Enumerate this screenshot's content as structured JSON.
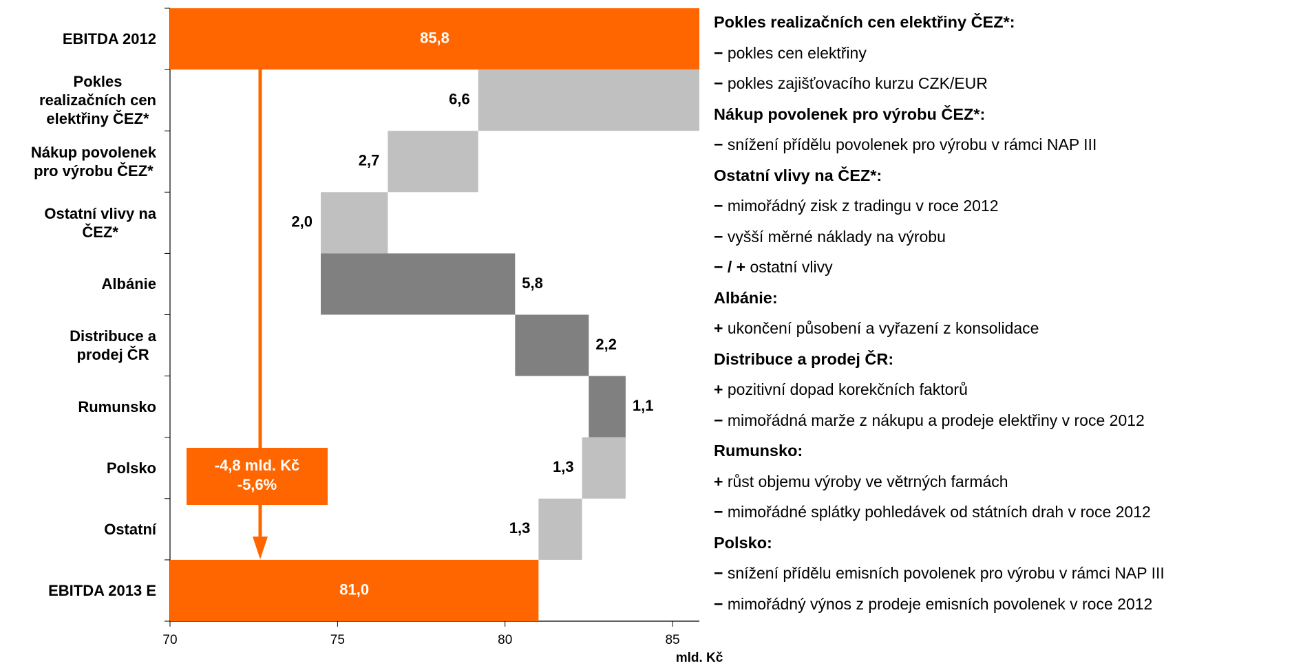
{
  "chart_data": {
    "type": "waterfall",
    "categories": [
      "EBITDA 2012",
      "Pokles\nrealizačních cen\nelektřiny ČEZ*",
      "Nákup povolenek\npro výrobu ČEZ*",
      "Ostatní vlivy na\nČEZ*",
      "Albánie",
      "Distribuce a\nprodej ČR",
      "Rumunsko",
      "Polsko",
      "Ostatní",
      "EBITDA 2013 E"
    ],
    "values": [
      85.8,
      -6.6,
      -2.7,
      -2.0,
      5.8,
      2.2,
      1.1,
      -1.3,
      -1.3,
      81.0
    ],
    "value_labels": [
      "85,8",
      "6,6",
      "2,7",
      "2,0",
      "5,8",
      "2,2",
      "1,1",
      "1,3",
      "1,3",
      "81,0"
    ],
    "colors": [
      "#ff6600",
      "#c0c0c0",
      "#c0c0c0",
      "#c0c0c0",
      "#808080",
      "#808080",
      "#808080",
      "#c0c0c0",
      "#c0c0c0",
      "#ff6600"
    ],
    "xlim": [
      70,
      85.8
    ],
    "xticks": [
      70,
      75,
      80,
      85
    ],
    "xlabel": "mld. Kč",
    "annotation": {
      "lines": [
        "-4,8 mld. Kč",
        "-5,6%"
      ],
      "color": "#ff6600"
    }
  },
  "notes": [
    {
      "heading": "Pokles realizačních cen elektřiny ČEZ*:",
      "items": [
        {
          "sign": "−",
          "text": "pokles cen elektřiny"
        },
        {
          "sign": "−",
          "text": "pokles zajišťovacího kurzu CZK/EUR"
        }
      ]
    },
    {
      "heading": "Nákup povolenek pro výrobu ČEZ*:",
      "items": [
        {
          "sign": "−",
          "text": "snížení přídělu povolenek pro výrobu v rámci NAP III"
        }
      ]
    },
    {
      "heading": "Ostatní vlivy na ČEZ*:",
      "items": [
        {
          "sign": "−",
          "text": "mimořádný zisk z tradingu v roce 2012"
        },
        {
          "sign": "−",
          "text": "vyšší měrné náklady na výrobu"
        },
        {
          "sign": "− / +",
          "text": "ostatní vlivy"
        }
      ]
    },
    {
      "heading": "Albánie:",
      "items": [
        {
          "sign": "+",
          "text": "ukončení působení a vyřazení z konsolidace"
        }
      ]
    },
    {
      "heading": "Distribuce a prodej ČR:",
      "items": [
        {
          "sign": "+",
          "text": "pozitivní dopad korekčních faktorů"
        },
        {
          "sign": "−",
          "text": "mimořádná marže z nákupu a prodeje elektřiny v roce 2012"
        }
      ]
    },
    {
      "heading": "Rumunsko:",
      "items": [
        {
          "sign": "+",
          "text": "růst objemu výroby ve větrných farmách"
        },
        {
          "sign": "−",
          "text": "mimořádné splátky pohledávek od státních drah v roce 2012"
        }
      ]
    },
    {
      "heading": "Polsko:",
      "items": [
        {
          "sign": "−",
          "text": "snížení přídělu emisních povolenek pro výrobu v rámci NAP III"
        },
        {
          "sign": "−",
          "text": "mimořádný výnos z prodeje emisních povolenek v roce 2012"
        }
      ]
    }
  ]
}
